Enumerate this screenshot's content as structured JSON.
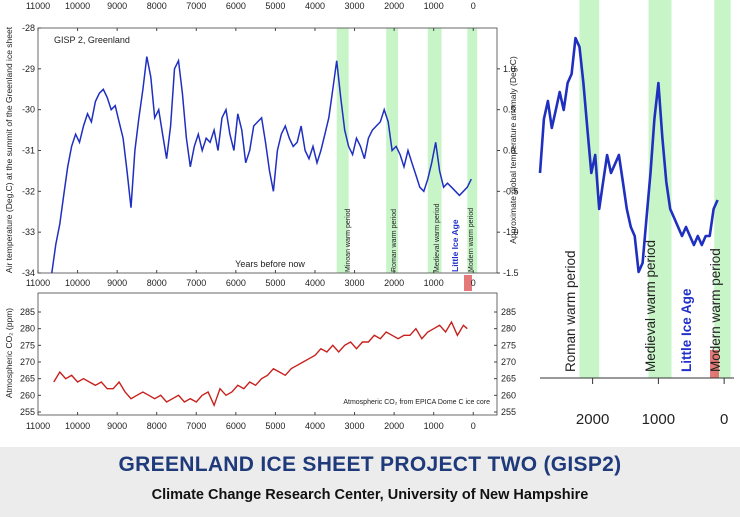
{
  "banner": {
    "title": "GREENLAND ICE SHEET PROJECT TWO (GISP2)",
    "subtitle": "Climate Change Research Center, University of New Hampshire"
  },
  "colors": {
    "temperature_line": "#1f2fc0",
    "co2_line": "#c8201c",
    "warm_band": "#c8f5c8",
    "modern_marker": "#e06060",
    "banner_text": "#1f3a7a"
  },
  "chart_data": [
    {
      "type": "line",
      "panel_label": "GISP 2, Greenland",
      "xlabel": "Years before now",
      "ylabel": "Air temperature (Deg.C) at the summit of the Greenland ice sheet",
      "y2label": "Approximate global temperature anomaly (Deg.C)",
      "x_ticks": [
        11000,
        10000,
        9000,
        8000,
        7000,
        6000,
        5000,
        4000,
        3000,
        2000,
        1000,
        0
      ],
      "y_ticks": [
        -28,
        -29,
        -30,
        -31,
        -32,
        -33,
        -34
      ],
      "y2_ticks": [
        1.0,
        0.5,
        0.0,
        -0.5,
        -1.0,
        -1.5
      ],
      "xlim": [
        11000,
        -600
      ],
      "ylim": [
        -34,
        -28
      ],
      "y2lim": [
        -1.5,
        1.5
      ],
      "grid": false,
      "bands": [
        {
          "label": "Minoan warm period",
          "from": 3450,
          "to": 3150
        },
        {
          "label": "Roman warm period",
          "from": 2200,
          "to": 1900
        },
        {
          "label": "Medieval warm period",
          "from": 1150,
          "to": 800
        },
        {
          "label": "Little Ice Age",
          "from": null,
          "to": null
        },
        {
          "label": "Modern warm period",
          "from": 150,
          "to": -100
        }
      ],
      "series": [
        {
          "x": [
            10650,
            10550,
            10450,
            10350,
            10250,
            10150,
            10050,
            9950,
            9850,
            9750,
            9650,
            9550,
            9450,
            9350,
            9250,
            9150,
            9050,
            8950,
            8850,
            8750,
            8650,
            8550,
            8450,
            8350,
            8250,
            8150,
            8050,
            7950,
            7850,
            7750,
            7650,
            7550,
            7450,
            7350,
            7250,
            7150,
            7050,
            6950,
            6850,
            6750,
            6650,
            6550,
            6450,
            6350,
            6250,
            6150,
            6050,
            5950,
            5850,
            5750,
            5650,
            5550,
            5450,
            5350,
            5250,
            5150,
            5050,
            4950,
            4850,
            4750,
            4650,
            4550,
            4450,
            4350,
            4250,
            4150,
            4050,
            3950,
            3850,
            3750,
            3650,
            3550,
            3450,
            3350,
            3250,
            3150,
            3050,
            2950,
            2850,
            2750,
            2650,
            2550,
            2450,
            2350,
            2250,
            2150,
            2050,
            1950,
            1850,
            1750,
            1650,
            1550,
            1450,
            1350,
            1250,
            1150,
            1050,
            950,
            850,
            750,
            650,
            550,
            450,
            350,
            250,
            150,
            50
          ],
          "y": [
            -34.0,
            -33.3,
            -32.8,
            -32.1,
            -31.4,
            -30.9,
            -30.6,
            -30.8,
            -30.4,
            -30.1,
            -30.3,
            -29.8,
            -29.6,
            -29.5,
            -29.7,
            -30.0,
            -29.9,
            -30.3,
            -30.7,
            -31.5,
            -32.4,
            -31.0,
            -30.2,
            -29.5,
            -28.7,
            -29.2,
            -30.2,
            -30.0,
            -30.6,
            -31.2,
            -30.4,
            -29.0,
            -28.8,
            -29.6,
            -30.7,
            -31.4,
            -30.9,
            -30.6,
            -31.0,
            -30.7,
            -30.8,
            -30.5,
            -31.0,
            -30.2,
            -30.0,
            -30.6,
            -31.0,
            -30.1,
            -30.5,
            -31.3,
            -31.0,
            -30.4,
            -30.3,
            -30.2,
            -30.8,
            -31.5,
            -32.0,
            -31.0,
            -30.6,
            -30.4,
            -30.7,
            -30.9,
            -30.8,
            -30.4,
            -31.0,
            -31.2,
            -30.9,
            -31.3,
            -31.0,
            -30.6,
            -30.2,
            -29.5,
            -28.8,
            -29.7,
            -30.5,
            -30.9,
            -31.1,
            -30.7,
            -30.9,
            -31.2,
            -30.7,
            -30.5,
            -30.4,
            -30.3,
            -30.0,
            -30.3,
            -31.0,
            -30.9,
            -31.1,
            -31.4,
            -31.0,
            -31.3,
            -31.6,
            -31.9,
            -32.0,
            -31.7,
            -31.3,
            -30.8,
            -31.5,
            -31.9,
            -31.8,
            -31.9,
            -32.0,
            -32.1,
            -32.0,
            -31.9,
            -31.7
          ]
        }
      ]
    },
    {
      "type": "line",
      "annotation": "Atmospheric CO₂ from EPICA Dome C ice core",
      "ylabel": "Atmospheric CO₂ (ppm)",
      "x_ticks": [
        11000,
        10000,
        9000,
        8000,
        7000,
        6000,
        5000,
        4000,
        3000,
        2000,
        1000,
        0
      ],
      "y_ticks": [
        285,
        280,
        275,
        270,
        265,
        260,
        255
      ],
      "xlim": [
        11000,
        -600
      ],
      "ylim": [
        255,
        285
      ],
      "grid": false,
      "series": [
        {
          "x": [
            10600,
            10450,
            10300,
            10150,
            10000,
            9850,
            9700,
            9550,
            9400,
            9250,
            9100,
            8950,
            8800,
            8650,
            8500,
            8350,
            8200,
            8050,
            7900,
            7750,
            7600,
            7450,
            7300,
            7150,
            7000,
            6850,
            6700,
            6550,
            6400,
            6250,
            6100,
            5950,
            5800,
            5650,
            5500,
            5350,
            5200,
            5050,
            4900,
            4750,
            4600,
            4450,
            4300,
            4150,
            4000,
            3850,
            3700,
            3550,
            3400,
            3250,
            3100,
            2950,
            2800,
            2650,
            2500,
            2350,
            2200,
            2050,
            1900,
            1750,
            1600,
            1450,
            1300,
            1150,
            1000,
            850,
            700,
            550,
            400,
            250,
            150
          ],
          "y": [
            264,
            267,
            265,
            266,
            264,
            265,
            264,
            263,
            264,
            262,
            262,
            264,
            261,
            259,
            260,
            261,
            260,
            259,
            260,
            258,
            259,
            260,
            258,
            259,
            258,
            260,
            261,
            257,
            262,
            260,
            261,
            263,
            262,
            264,
            263,
            265,
            266,
            268,
            267,
            266,
            268,
            269,
            270,
            271,
            272,
            274,
            273,
            275,
            273,
            275,
            276,
            274,
            276,
            276,
            278,
            277,
            279,
            278,
            277,
            278,
            278,
            280,
            277,
            279,
            280,
            281,
            279,
            282,
            278,
            281,
            280
          ]
        }
      ]
    },
    {
      "type": "line",
      "x_ticks": [
        2000,
        1000,
        0
      ],
      "xlim": [
        2800,
        -150
      ],
      "ylim": [
        -1.5,
        1.5
      ],
      "grid": false,
      "bands": [
        {
          "label": "Roman warm period",
          "from": 2200,
          "to": 1900
        },
        {
          "label": "Medieval warm period",
          "from": 1150,
          "to": 800
        },
        {
          "label": "Little Ice Age",
          "from": null,
          "to": null
        },
        {
          "label": "Modern warm period",
          "from": 150,
          "to": -100
        }
      ],
      "series": [
        {
          "x": [
            2800,
            2740,
            2680,
            2620,
            2560,
            2500,
            2440,
            2380,
            2320,
            2260,
            2200,
            2140,
            2080,
            2020,
            1960,
            1900,
            1840,
            1780,
            1720,
            1660,
            1600,
            1540,
            1480,
            1420,
            1360,
            1300,
            1240,
            1180,
            1120,
            1060,
            1000,
            940,
            880,
            820,
            760,
            700,
            640,
            580,
            520,
            460,
            400,
            340,
            280,
            220,
            160,
            100
          ],
          "y": [
            -0.2,
            0.4,
            0.6,
            0.3,
            0.5,
            0.7,
            0.5,
            0.8,
            0.9,
            1.3,
            1.2,
            0.8,
            0.3,
            -0.2,
            0.0,
            -0.6,
            -0.3,
            0.0,
            -0.2,
            -0.1,
            0.0,
            -0.3,
            -0.6,
            -0.8,
            -0.9,
            -1.3,
            -1.2,
            -0.7,
            -0.2,
            0.4,
            0.8,
            0.2,
            -0.3,
            -0.6,
            -0.7,
            -0.8,
            -0.9,
            -0.8,
            -0.9,
            -1.0,
            -0.9,
            -1.0,
            -0.9,
            -0.9,
            -0.6,
            -0.5
          ]
        }
      ]
    }
  ]
}
